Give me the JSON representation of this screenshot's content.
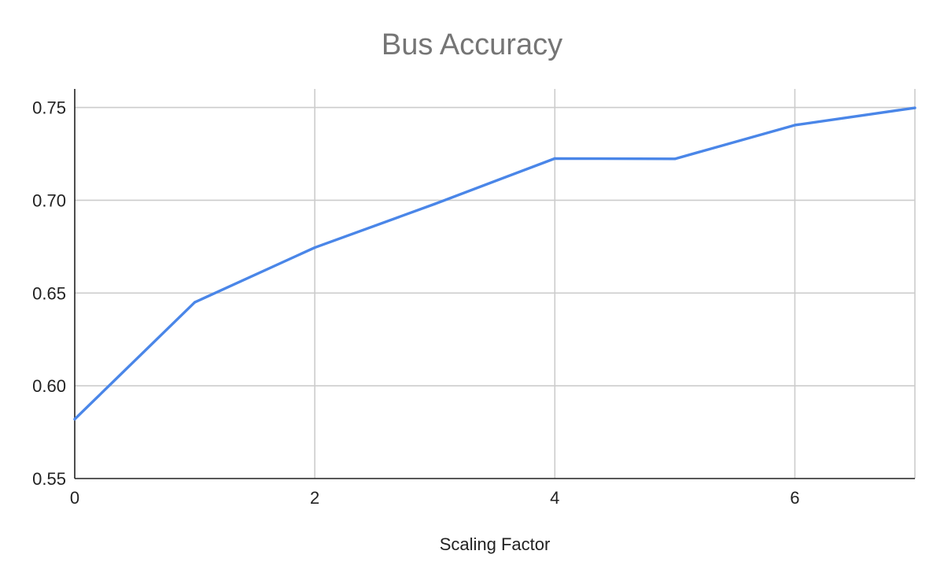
{
  "colors": {
    "series": "#4a86e8",
    "grid": "#cccccc",
    "title": "#757575",
    "text": "#222222"
  },
  "chart_data": {
    "type": "line",
    "title": "Bus Accuracy",
    "xlabel": "Scaling Factor",
    "ylabel": "",
    "xlim": [
      0,
      7
    ],
    "ylim": [
      0.55,
      0.76
    ],
    "x_ticks": [
      0,
      2,
      4,
      6
    ],
    "x_tick_labels": [
      "0",
      "2",
      "4",
      "6"
    ],
    "y_ticks": [
      0.55,
      0.6,
      0.65,
      0.7,
      0.75
    ],
    "y_tick_labels": [
      "0.55",
      "0.60",
      "0.65",
      "0.70",
      "0.75"
    ],
    "grid": true,
    "legend": "none",
    "x": [
      0,
      1,
      2,
      3,
      4,
      5,
      6,
      7
    ],
    "series": [
      {
        "values": [
          0.582,
          0.645,
          0.6745,
          0.698,
          0.7225,
          0.7223,
          0.7405,
          0.7498
        ]
      }
    ]
  }
}
